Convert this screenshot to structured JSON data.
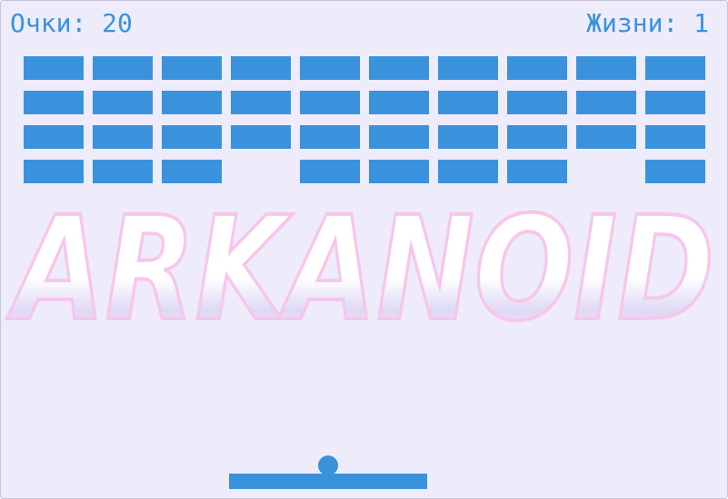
{
  "hud": {
    "score_text": "Очки: 20",
    "lives_text": "Жизни: 1"
  },
  "logo": {
    "text": "ARKANOID",
    "colors": {
      "outline": "#f6c7ea",
      "fill": "#ffffff",
      "shade": "#ddd8f4"
    }
  },
  "bricks": {
    "rows": 4,
    "cols": 10,
    "present": [
      [
        1,
        1,
        1,
        1,
        1,
        1,
        1,
        1,
        1,
        1
      ],
      [
        1,
        1,
        1,
        1,
        1,
        1,
        1,
        1,
        1,
        1
      ],
      [
        1,
        1,
        1,
        1,
        1,
        1,
        1,
        1,
        1,
        1
      ],
      [
        1,
        1,
        1,
        0,
        1,
        1,
        1,
        1,
        0,
        1
      ]
    ]
  },
  "colors": {
    "background": "#eeebfb",
    "accent": "#3a92dd"
  }
}
